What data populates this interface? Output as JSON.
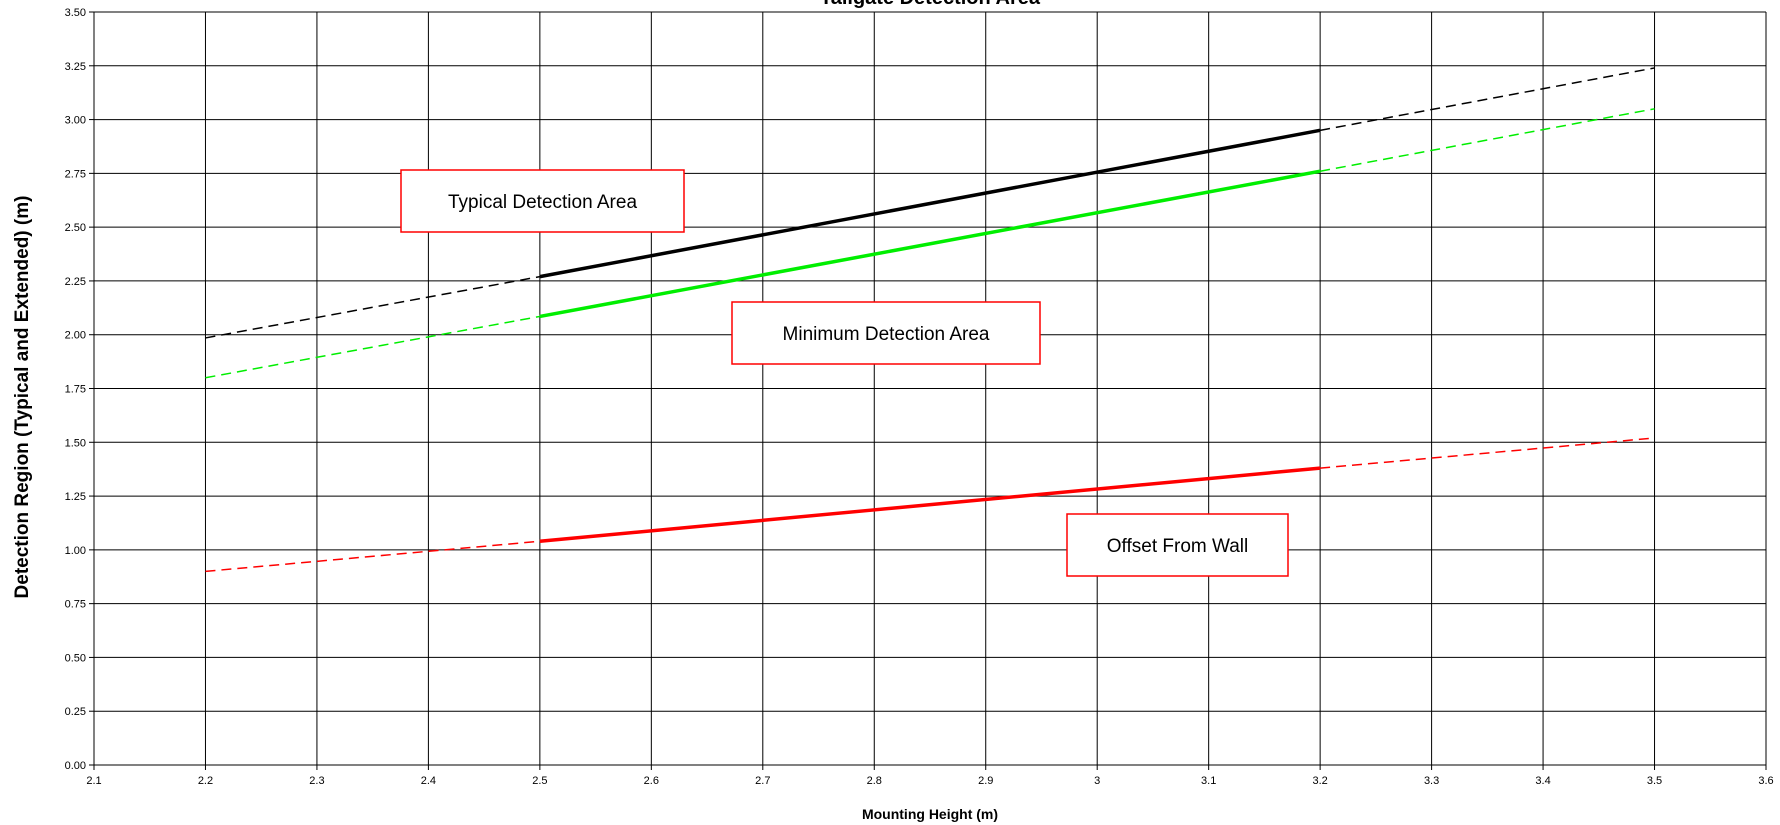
{
  "chart_data": {
    "type": "line",
    "title": "Tailgate Detection Area",
    "xlabel": "Mounting Height (m)",
    "ylabel": "Detection Region (Typical and Extended) (m)",
    "xlim": [
      2.1,
      3.6
    ],
    "ylim": [
      0.0,
      3.5
    ],
    "x_ticks": [
      "2.1",
      "2.2",
      "2.3",
      "2.4",
      "2.5",
      "2.6",
      "2.7",
      "2.8",
      "2.9",
      "3",
      "3.1",
      "3.2",
      "3.3",
      "3.4",
      "3.5",
      "3.6"
    ],
    "y_ticks": [
      "0.00",
      "0.25",
      "0.50",
      "0.75",
      "1.00",
      "1.25",
      "1.50",
      "1.75",
      "2.00",
      "2.25",
      "2.50",
      "2.75",
      "3.00",
      "3.25",
      "3.50"
    ],
    "grid": true,
    "series": [
      {
        "color": "#000000",
        "x": [
          2.2,
          2.5,
          3.2,
          3.5
        ],
        "y": [
          1.985,
          2.27,
          2.95,
          3.24
        ],
        "solid_range": [
          2.5,
          3.2
        ]
      },
      {
        "color": "#00ee00",
        "x": [
          2.2,
          2.5,
          3.2,
          3.5
        ],
        "y": [
          1.8,
          2.085,
          2.76,
          3.05
        ],
        "solid_range": [
          2.5,
          3.2
        ]
      },
      {
        "color": "#ff0000",
        "x": [
          2.2,
          2.5,
          3.2,
          3.5
        ],
        "y": [
          0.9,
          1.04,
          1.38,
          1.52
        ],
        "solid_range": [
          2.5,
          3.2
        ]
      }
    ],
    "annotations": [
      {
        "text": "Typical Detection Area",
        "border": "#ff0000"
      },
      {
        "text": "Minimum Detection Area",
        "border": "#ff0000"
      },
      {
        "text": "Offset From Wall",
        "border": "#ff0000"
      }
    ]
  }
}
